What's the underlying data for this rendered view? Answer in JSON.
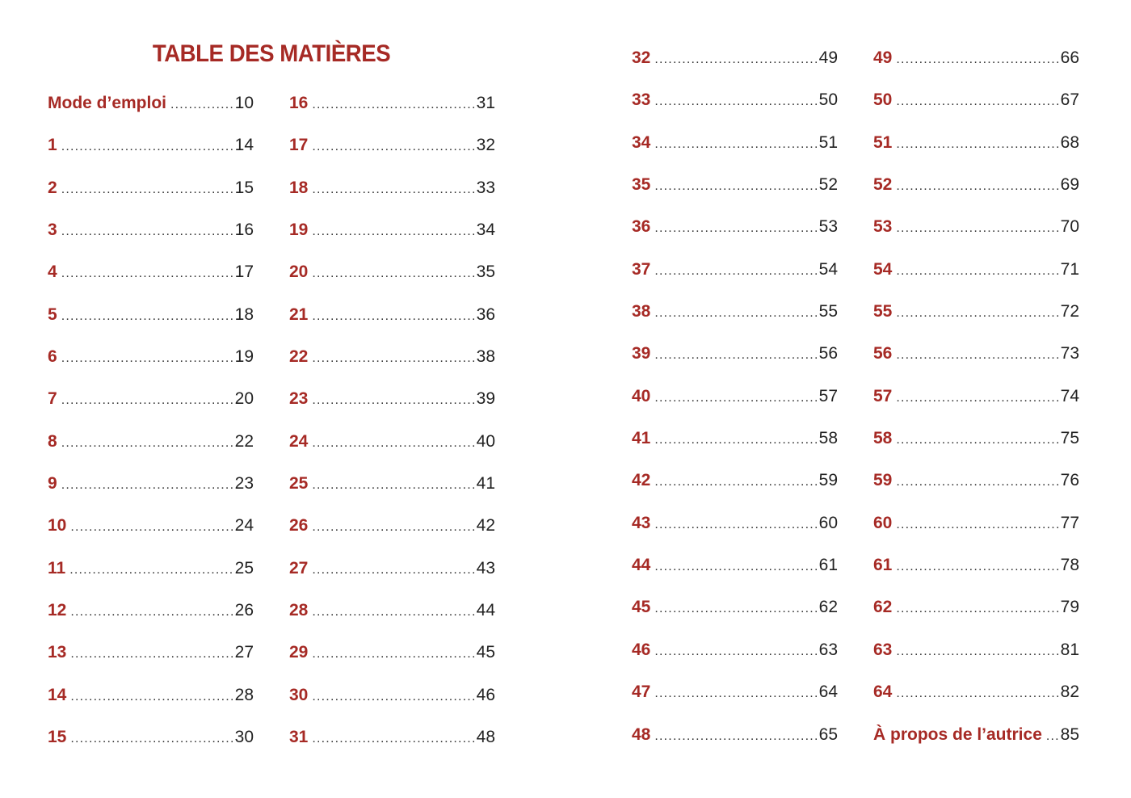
{
  "title": "TABLE DES MATIÈRES",
  "accent_color": "#a62a25",
  "columns": [
    [
      [
        "Mode d’emploi",
        "10"
      ],
      [
        "1",
        "14"
      ],
      [
        "2",
        "15"
      ],
      [
        "3",
        "16"
      ],
      [
        "4",
        "17"
      ],
      [
        "5",
        "18"
      ],
      [
        "6",
        "19"
      ],
      [
        "7",
        "20"
      ],
      [
        "8",
        "22"
      ],
      [
        "9",
        "23"
      ],
      [
        "10",
        "24"
      ],
      [
        "11",
        "25"
      ],
      [
        "12",
        "26"
      ],
      [
        "13",
        "27"
      ],
      [
        "14",
        "28"
      ],
      [
        "15",
        "30"
      ]
    ],
    [
      [
        "16",
        "31"
      ],
      [
        "17",
        "32"
      ],
      [
        "18",
        "33"
      ],
      [
        "19",
        "34"
      ],
      [
        "20",
        "35"
      ],
      [
        "21",
        "36"
      ],
      [
        "22",
        "38"
      ],
      [
        "23",
        "39"
      ],
      [
        "24",
        "40"
      ],
      [
        "25",
        "41"
      ],
      [
        "26",
        "42"
      ],
      [
        "27",
        "43"
      ],
      [
        "28",
        "44"
      ],
      [
        "29",
        "45"
      ],
      [
        "30",
        "46"
      ],
      [
        "31",
        "48"
      ]
    ],
    [
      [
        "32",
        "49"
      ],
      [
        "33",
        "50"
      ],
      [
        "34",
        "51"
      ],
      [
        "35",
        "52"
      ],
      [
        "36",
        "53"
      ],
      [
        "37",
        "54"
      ],
      [
        "38",
        "55"
      ],
      [
        "39",
        "56"
      ],
      [
        "40",
        "57"
      ],
      [
        "41",
        "58"
      ],
      [
        "42",
        "59"
      ],
      [
        "43",
        "60"
      ],
      [
        "44",
        "61"
      ],
      [
        "45",
        "62"
      ],
      [
        "46",
        "63"
      ],
      [
        "47",
        "64"
      ],
      [
        "48",
        "65"
      ]
    ],
    [
      [
        "49",
        "66"
      ],
      [
        "50",
        "67"
      ],
      [
        "51",
        "68"
      ],
      [
        "52",
        "69"
      ],
      [
        "53",
        "70"
      ],
      [
        "54",
        "71"
      ],
      [
        "55",
        "72"
      ],
      [
        "56",
        "73"
      ],
      [
        "57",
        "74"
      ],
      [
        "58",
        "75"
      ],
      [
        "59",
        "76"
      ],
      [
        "60",
        "77"
      ],
      [
        "61",
        "78"
      ],
      [
        "62",
        "79"
      ],
      [
        "63",
        "81"
      ],
      [
        "64",
        "82"
      ],
      [
        "À propos de l’autrice",
        "85"
      ]
    ]
  ]
}
